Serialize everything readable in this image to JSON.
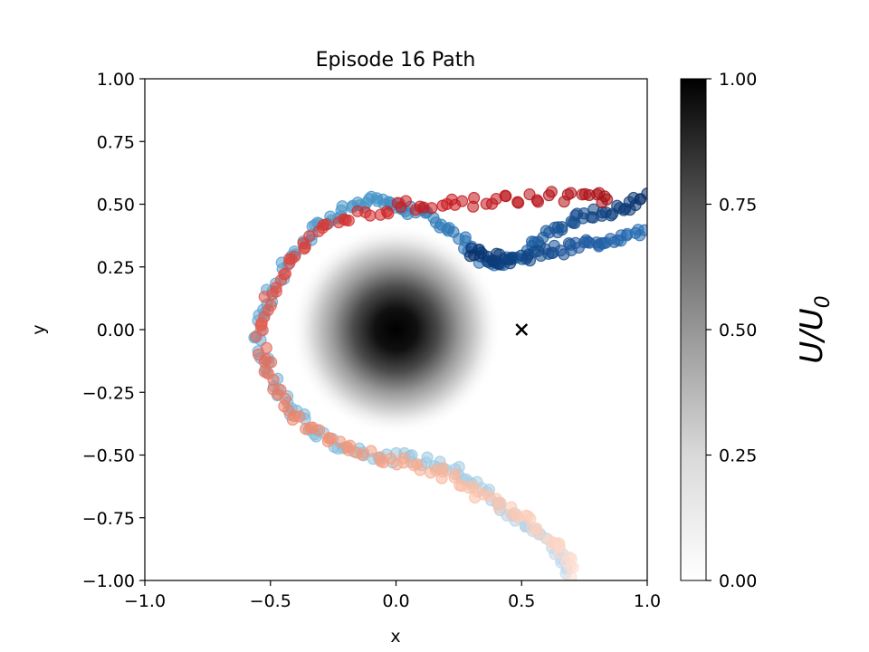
{
  "chart_data": {
    "type": "scatter",
    "title": "Episode 16 Path",
    "xlabel": "x",
    "ylabel": "y",
    "xlim": [
      -1.0,
      1.0
    ],
    "ylim": [
      -1.0,
      1.0
    ],
    "xticks": [
      "−1.0",
      "−0.5",
      "0.0",
      "0.5",
      "1.0"
    ],
    "xtick_values": [
      -1.0,
      -0.5,
      0.0,
      0.5,
      1.0
    ],
    "yticks": [
      "−1.00",
      "−0.75",
      "−0.50",
      "−0.25",
      "0.00",
      "0.25",
      "0.50",
      "0.75",
      "1.00"
    ],
    "ytick_values": [
      -1.0,
      -0.75,
      -0.5,
      -0.25,
      0.0,
      0.25,
      0.5,
      0.75,
      1.0
    ],
    "grid": false,
    "background_field": {
      "description": "gaussian potential centered at origin",
      "center": [
        0.0,
        0.0
      ],
      "sigma": 0.14,
      "radius_visible": 0.42,
      "colormap": "Greys"
    },
    "target_marker": {
      "x": 0.5,
      "y": 0.0,
      "symbol": "x",
      "color": "#000000"
    },
    "colorbar": {
      "label_main": "U/U",
      "label_sub": "0",
      "ticks": [
        "0.00",
        "0.25",
        "0.50",
        "0.75",
        "1.00"
      ],
      "tick_values": [
        0.0,
        0.25,
        0.5,
        0.75,
        1.0
      ],
      "range": [
        0.0,
        1.0
      ]
    },
    "paths": [
      {
        "colormap": "Blues_r",
        "points": [
          [
            1.0,
            0.54
          ],
          [
            0.95,
            0.5
          ],
          [
            0.9,
            0.49
          ],
          [
            0.85,
            0.47
          ],
          [
            0.8,
            0.46
          ],
          [
            0.75,
            0.45
          ],
          [
            0.7,
            0.43
          ],
          [
            0.65,
            0.41
          ],
          [
            0.6,
            0.38
          ],
          [
            0.55,
            0.34
          ],
          [
            0.5,
            0.3
          ],
          [
            0.45,
            0.27
          ],
          [
            0.4,
            0.25
          ],
          [
            0.35,
            0.28
          ],
          [
            0.3,
            0.33
          ],
          [
            0.25,
            0.38
          ],
          [
            0.2,
            0.42
          ],
          [
            0.15,
            0.45
          ],
          [
            0.1,
            0.47
          ],
          [
            0.05,
            0.48
          ],
          [
            0.0,
            0.49
          ],
          [
            -0.05,
            0.5
          ],
          [
            -0.1,
            0.51
          ],
          [
            -0.15,
            0.5
          ],
          [
            -0.2,
            0.48
          ],
          [
            -0.25,
            0.45
          ],
          [
            -0.3,
            0.42
          ],
          [
            -0.35,
            0.37
          ],
          [
            -0.4,
            0.31
          ],
          [
            -0.45,
            0.24
          ],
          [
            -0.5,
            0.15
          ],
          [
            -0.53,
            0.07
          ],
          [
            -0.55,
            0.0
          ],
          [
            -0.54,
            -0.08
          ],
          [
            -0.51,
            -0.16
          ],
          [
            -0.47,
            -0.24
          ],
          [
            -0.42,
            -0.31
          ],
          [
            -0.36,
            -0.37
          ],
          [
            -0.3,
            -0.42
          ],
          [
            -0.23,
            -0.46
          ],
          [
            -0.15,
            -0.48
          ],
          [
            -0.07,
            -0.5
          ],
          [
            0.0,
            -0.51
          ],
          [
            0.08,
            -0.52
          ],
          [
            0.15,
            -0.53
          ],
          [
            0.22,
            -0.55
          ],
          [
            0.28,
            -0.58
          ],
          [
            0.33,
            -0.62
          ],
          [
            0.38,
            -0.67
          ],
          [
            0.43,
            -0.72
          ],
          [
            0.49,
            -0.76
          ],
          [
            0.55,
            -0.79
          ],
          [
            0.6,
            -0.84
          ],
          [
            0.64,
            -0.89
          ],
          [
            0.67,
            -0.94
          ],
          [
            0.7,
            -0.98
          ]
        ]
      },
      {
        "colormap": "Blues",
        "points": [
          [
            0.3,
            0.31
          ],
          [
            0.34,
            0.3
          ],
          [
            0.38,
            0.29
          ],
          [
            0.42,
            0.28
          ],
          [
            0.46,
            0.28
          ],
          [
            0.5,
            0.29
          ],
          [
            0.55,
            0.3
          ],
          [
            0.6,
            0.31
          ],
          [
            0.65,
            0.32
          ],
          [
            0.7,
            0.33
          ],
          [
            0.75,
            0.34
          ],
          [
            0.8,
            0.35
          ],
          [
            0.85,
            0.36
          ],
          [
            0.9,
            0.37
          ],
          [
            0.95,
            0.38
          ],
          [
            0.98,
            0.4
          ]
        ]
      },
      {
        "colormap": "Reds",
        "points": [
          [
            0.85,
            0.52
          ],
          [
            0.8,
            0.53
          ],
          [
            0.7,
            0.53
          ],
          [
            0.6,
            0.53
          ],
          [
            0.5,
            0.52
          ],
          [
            0.4,
            0.52
          ],
          [
            0.3,
            0.51
          ],
          [
            0.2,
            0.5
          ],
          [
            0.1,
            0.5
          ],
          [
            0.0,
            0.49
          ],
          [
            -0.1,
            0.47
          ],
          [
            -0.2,
            0.44
          ],
          [
            -0.28,
            0.4
          ],
          [
            -0.35,
            0.35
          ],
          [
            -0.41,
            0.29
          ],
          [
            -0.46,
            0.22
          ],
          [
            -0.5,
            0.14
          ],
          [
            -0.53,
            0.06
          ],
          [
            -0.54,
            -0.02
          ],
          [
            -0.53,
            -0.1
          ],
          [
            -0.5,
            -0.18
          ],
          [
            -0.46,
            -0.26
          ],
          [
            -0.41,
            -0.33
          ],
          [
            -0.34,
            -0.4
          ],
          [
            -0.27,
            -0.44
          ],
          [
            -0.19,
            -0.47
          ],
          [
            -0.1,
            -0.5
          ],
          [
            -0.02,
            -0.52
          ],
          [
            0.07,
            -0.54
          ],
          [
            0.15,
            -0.56
          ],
          [
            0.22,
            -0.59
          ],
          [
            0.29,
            -0.63
          ],
          [
            0.35,
            -0.67
          ],
          [
            0.42,
            -0.71
          ],
          [
            0.5,
            -0.74
          ],
          [
            0.56,
            -0.78
          ],
          [
            0.61,
            -0.83
          ],
          [
            0.65,
            -0.88
          ],
          [
            0.69,
            -0.93
          ],
          [
            0.72,
            -0.98
          ]
        ]
      }
    ]
  }
}
